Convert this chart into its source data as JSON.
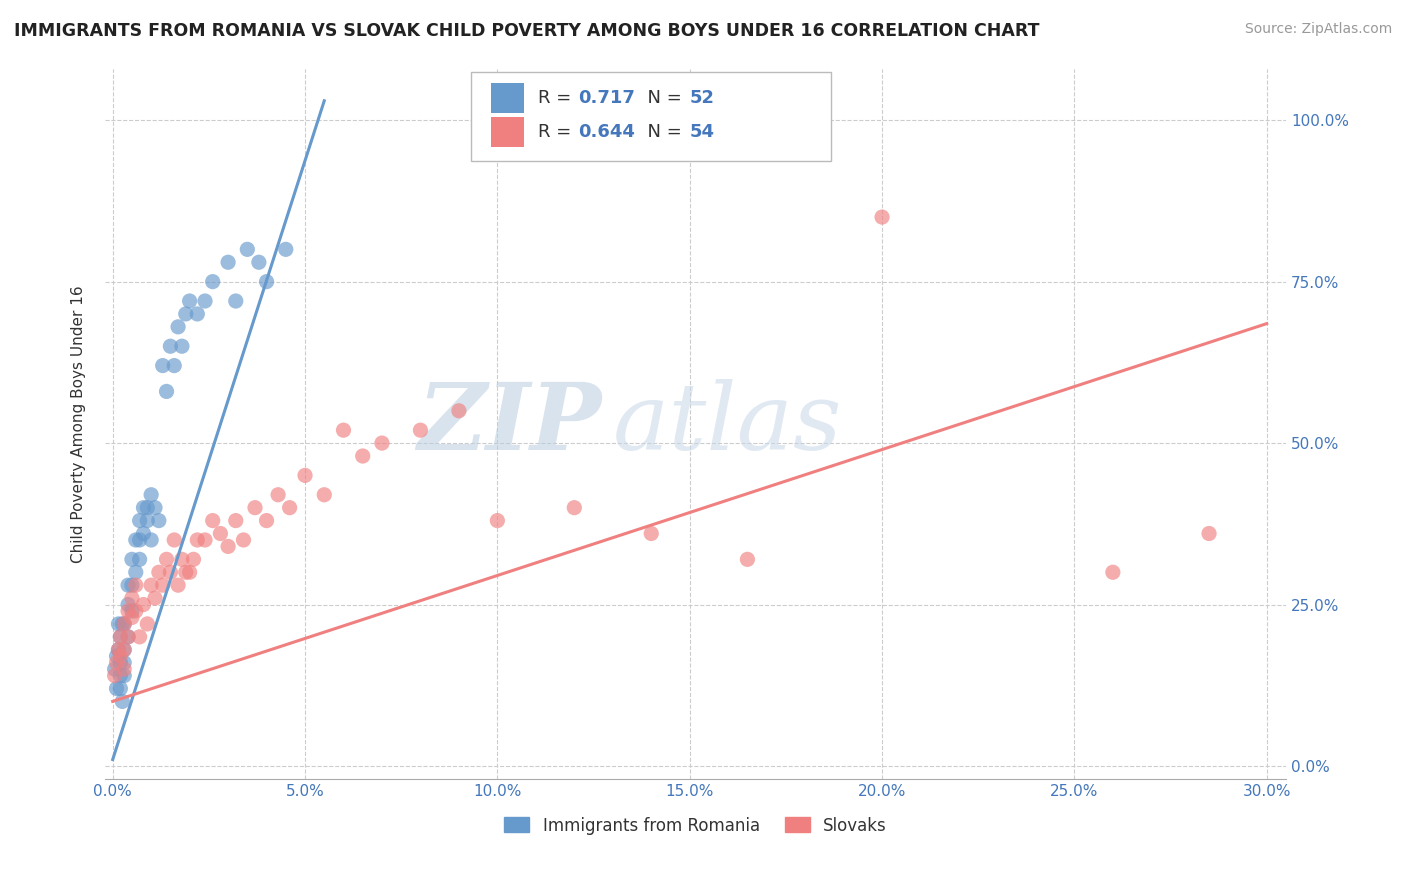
{
  "title": "IMMIGRANTS FROM ROMANIA VS SLOVAK CHILD POVERTY AMONG BOYS UNDER 16 CORRELATION CHART",
  "source": "Source: ZipAtlas.com",
  "ylabel": "Child Poverty Among Boys Under 16",
  "xlim": [
    -0.002,
    0.305
  ],
  "ylim": [
    -0.02,
    1.08
  ],
  "xticks": [
    0.0,
    0.05,
    0.1,
    0.15,
    0.2,
    0.25,
    0.3
  ],
  "xticklabels": [
    "0.0%",
    "5.0%",
    "10.0%",
    "15.0%",
    "20.0%",
    "25.0%",
    "30.0%"
  ],
  "yticks": [
    0.0,
    0.25,
    0.5,
    0.75,
    1.0
  ],
  "yticklabels": [
    "0.0%",
    "25.0%",
    "50.0%",
    "75.0%",
    "100.0%"
  ],
  "romania_color": "#6699cc",
  "slovak_color": "#f08080",
  "romania_R": 0.717,
  "romania_N": 52,
  "slovak_R": 0.644,
  "slovak_N": 54,
  "legend_label_romania": "Immigrants from Romania",
  "legend_label_slovak": "Slovaks",
  "watermark_zip": "ZIP",
  "watermark_atlas": "atlas",
  "romania_trend_x": [
    0.0,
    0.055
  ],
  "romania_trend_y": [
    0.01,
    1.03
  ],
  "slovak_trend_x": [
    0.0,
    0.3
  ],
  "slovak_trend_y": [
    0.1,
    0.685
  ],
  "bg_color": "#ffffff",
  "grid_color": "#cccccc",
  "scatter_alpha": 0.65,
  "scatter_size": 120,
  "romania_scatter_x": [
    0.0005,
    0.001,
    0.001,
    0.0015,
    0.0015,
    0.002,
    0.002,
    0.002,
    0.002,
    0.0025,
    0.0025,
    0.003,
    0.003,
    0.003,
    0.003,
    0.004,
    0.004,
    0.004,
    0.005,
    0.005,
    0.005,
    0.006,
    0.006,
    0.007,
    0.007,
    0.007,
    0.008,
    0.008,
    0.009,
    0.009,
    0.01,
    0.01,
    0.011,
    0.012,
    0.013,
    0.014,
    0.015,
    0.016,
    0.017,
    0.018,
    0.019,
    0.02,
    0.022,
    0.024,
    0.026,
    0.03,
    0.032,
    0.035,
    0.038,
    0.04,
    0.045,
    0.16
  ],
  "romania_scatter_y": [
    0.15,
    0.12,
    0.17,
    0.18,
    0.22,
    0.2,
    0.16,
    0.14,
    0.12,
    0.22,
    0.1,
    0.22,
    0.18,
    0.16,
    0.14,
    0.28,
    0.25,
    0.2,
    0.32,
    0.28,
    0.24,
    0.35,
    0.3,
    0.38,
    0.35,
    0.32,
    0.4,
    0.36,
    0.4,
    0.38,
    0.35,
    0.42,
    0.4,
    0.38,
    0.62,
    0.58,
    0.65,
    0.62,
    0.68,
    0.65,
    0.7,
    0.72,
    0.7,
    0.72,
    0.75,
    0.78,
    0.72,
    0.8,
    0.78,
    0.75,
    0.8,
    1.01
  ],
  "slovak_scatter_x": [
    0.0005,
    0.001,
    0.0015,
    0.002,
    0.002,
    0.003,
    0.003,
    0.003,
    0.004,
    0.004,
    0.005,
    0.005,
    0.006,
    0.006,
    0.007,
    0.008,
    0.009,
    0.01,
    0.011,
    0.012,
    0.013,
    0.014,
    0.015,
    0.016,
    0.017,
    0.018,
    0.019,
    0.02,
    0.021,
    0.022,
    0.024,
    0.026,
    0.028,
    0.03,
    0.032,
    0.034,
    0.037,
    0.04,
    0.043,
    0.046,
    0.05,
    0.055,
    0.06,
    0.065,
    0.07,
    0.08,
    0.09,
    0.1,
    0.12,
    0.14,
    0.165,
    0.2,
    0.26,
    0.285
  ],
  "slovak_scatter_y": [
    0.14,
    0.16,
    0.18,
    0.2,
    0.17,
    0.22,
    0.18,
    0.15,
    0.24,
    0.2,
    0.26,
    0.23,
    0.28,
    0.24,
    0.2,
    0.25,
    0.22,
    0.28,
    0.26,
    0.3,
    0.28,
    0.32,
    0.3,
    0.35,
    0.28,
    0.32,
    0.3,
    0.3,
    0.32,
    0.35,
    0.35,
    0.38,
    0.36,
    0.34,
    0.38,
    0.35,
    0.4,
    0.38,
    0.42,
    0.4,
    0.45,
    0.42,
    0.52,
    0.48,
    0.5,
    0.52,
    0.55,
    0.38,
    0.4,
    0.36,
    0.32,
    0.85,
    0.3,
    0.36
  ]
}
